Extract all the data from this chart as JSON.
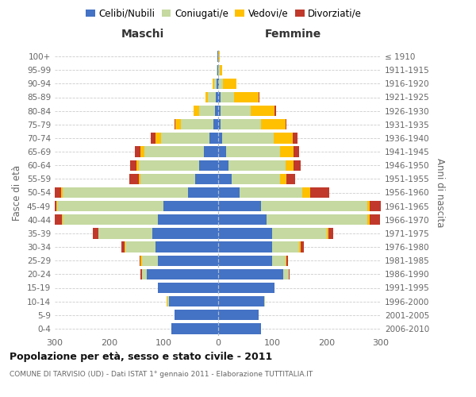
{
  "age_groups": [
    "0-4",
    "5-9",
    "10-14",
    "15-19",
    "20-24",
    "25-29",
    "30-34",
    "35-39",
    "40-44",
    "45-49",
    "50-54",
    "55-59",
    "60-64",
    "65-69",
    "70-74",
    "75-79",
    "80-84",
    "85-89",
    "90-94",
    "95-99",
    "100+"
  ],
  "birth_years": [
    "2006-2010",
    "2001-2005",
    "1996-2000",
    "1991-1995",
    "1986-1990",
    "1981-1985",
    "1976-1980",
    "1971-1975",
    "1966-1970",
    "1961-1965",
    "1956-1960",
    "1951-1955",
    "1946-1950",
    "1941-1945",
    "1936-1940",
    "1931-1935",
    "1926-1930",
    "1921-1925",
    "1916-1920",
    "1911-1915",
    "≤ 1910"
  ],
  "colors": {
    "celibi": "#4472c4",
    "coniugati": "#c5d9a0",
    "vedovi": "#ffc000",
    "divorziati": "#c0392b"
  },
  "male": {
    "celibi": [
      85,
      80,
      90,
      110,
      130,
      110,
      115,
      120,
      110,
      100,
      55,
      42,
      35,
      25,
      15,
      8,
      5,
      3,
      2,
      1,
      1
    ],
    "coniugati": [
      0,
      0,
      2,
      0,
      10,
      30,
      55,
      100,
      175,
      195,
      230,
      100,
      110,
      110,
      90,
      60,
      30,
      15,
      5,
      1,
      0
    ],
    "vedovi": [
      0,
      0,
      2,
      0,
      0,
      2,
      2,
      0,
      2,
      2,
      3,
      3,
      5,
      8,
      10,
      10,
      10,
      5,
      2,
      0,
      0
    ],
    "divorziati": [
      0,
      0,
      0,
      0,
      2,
      2,
      5,
      10,
      18,
      18,
      35,
      18,
      12,
      10,
      8,
      2,
      0,
      0,
      0,
      0,
      0
    ]
  },
  "female": {
    "nubili": [
      80,
      75,
      85,
      105,
      120,
      100,
      100,
      100,
      90,
      80,
      40,
      25,
      20,
      15,
      8,
      5,
      5,
      5,
      2,
      1,
      1
    ],
    "coniugate": [
      0,
      0,
      2,
      0,
      10,
      25,
      50,
      100,
      185,
      195,
      115,
      90,
      105,
      100,
      95,
      75,
      55,
      25,
      8,
      2,
      0
    ],
    "vedove": [
      0,
      0,
      0,
      0,
      0,
      2,
      3,
      3,
      5,
      5,
      15,
      12,
      15,
      25,
      35,
      45,
      45,
      45,
      25,
      5,
      2
    ],
    "divorziate": [
      0,
      0,
      0,
      0,
      2,
      2,
      5,
      10,
      18,
      25,
      35,
      15,
      12,
      10,
      8,
      2,
      2,
      2,
      0,
      0,
      0
    ]
  },
  "xlim": 300,
  "title": "Popolazione per età, sesso e stato civile - 2011",
  "subtitle": "COMUNE DI TARVISIO (UD) - Dati ISTAT 1° gennaio 2011 - Elaborazione TUTTITALIA.IT",
  "ylabel_left": "Fasce di età",
  "ylabel_right": "Anni di nascita",
  "header_left": "Maschi",
  "header_right": "Femmine",
  "legend_labels": [
    "Celibi/Nubili",
    "Coniugati/e",
    "Vedovi/e",
    "Divorziati/e"
  ],
  "bg_color": "#ffffff",
  "grid_color": "#cccccc",
  "text_color": "#666666",
  "title_color": "#111111",
  "center_line_color": "#aabbcc"
}
